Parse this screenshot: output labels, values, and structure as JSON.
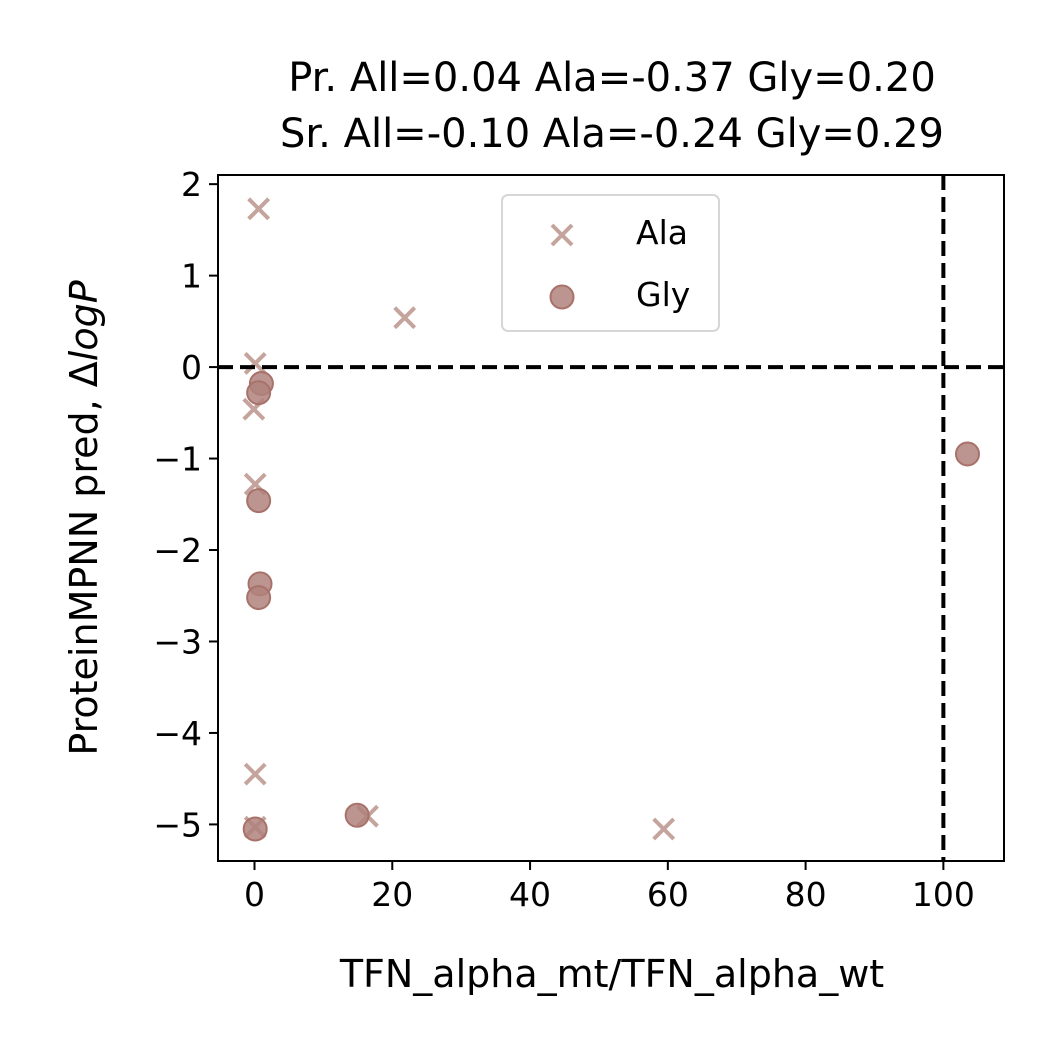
{
  "chart_data": {
    "type": "scatter",
    "title_lines": [
      "Pr. All=0.04 Ala=-0.37 Gly=0.20",
      "Sr. All=-0.10 Ala=-0.24 Gly=0.29"
    ],
    "xlabel": "TFN_alpha_mt/TFN_alpha_wt",
    "ylabel": "ProteinMPNN pred, ΔlogP",
    "ylabel_prefix": "ProteinMPNN pred, Δ",
    "ylabel_italic": "logP",
    "xlim": [
      -5.3,
      108.8
    ],
    "ylim": [
      -5.4,
      2.1
    ],
    "x_ticks": [
      {
        "value": 0,
        "label": "0"
      },
      {
        "value": 20,
        "label": "20"
      },
      {
        "value": 40,
        "label": "40"
      },
      {
        "value": 60,
        "label": "60"
      },
      {
        "value": 80,
        "label": "80"
      },
      {
        "value": 100,
        "label": "100"
      }
    ],
    "y_ticks": [
      {
        "value": 2,
        "label": "2"
      },
      {
        "value": 1,
        "label": "1"
      },
      {
        "value": 0,
        "label": "0"
      },
      {
        "value": -1,
        "label": "−1"
      },
      {
        "value": -2,
        "label": "−2"
      },
      {
        "value": -3,
        "label": "−3"
      },
      {
        "value": -4,
        "label": "−4"
      },
      {
        "value": -5,
        "label": "−5"
      }
    ],
    "reference_lines": {
      "x": 100,
      "y": 0
    },
    "grid": false,
    "legend_position": "top-center",
    "series": [
      {
        "name": "Ala",
        "marker": "x",
        "color": "#c4a49c",
        "points": [
          [
            0.6,
            1.73
          ],
          [
            21.8,
            0.54
          ],
          [
            0.1,
            0.04
          ],
          [
            -0.1,
            -0.46
          ],
          [
            0.1,
            -1.28
          ],
          [
            0.1,
            -4.45
          ],
          [
            0.1,
            -5.03
          ],
          [
            16.4,
            -4.91
          ],
          [
            59.4,
            -5.05
          ]
        ]
      },
      {
        "name": "Gly",
        "marker": "o",
        "color": "#b0837c",
        "edge_color": "#a8726b",
        "points": [
          [
            1.0,
            -0.18
          ],
          [
            0.6,
            -0.28
          ],
          [
            0.6,
            -1.46
          ],
          [
            0.8,
            -2.37
          ],
          [
            0.6,
            -2.52
          ],
          [
            14.9,
            -4.9
          ],
          [
            0.1,
            -5.05
          ],
          [
            103.5,
            -0.95
          ]
        ]
      }
    ]
  }
}
